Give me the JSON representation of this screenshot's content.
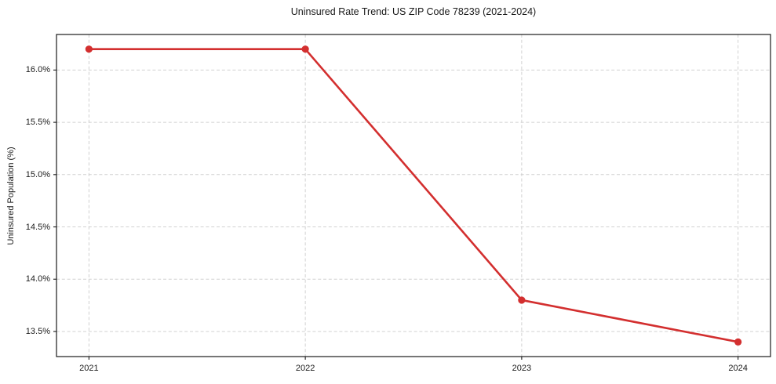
{
  "chart_data": {
    "type": "line",
    "title": "Uninsured Rate Trend: US ZIP Code 78239 (2021-2024)",
    "xlabel": "",
    "ylabel": "Uninsured Population (%)",
    "x": [
      2021,
      2022,
      2023,
      2024
    ],
    "values": [
      16.2,
      16.2,
      13.8,
      13.4
    ],
    "xtick_labels": [
      "2021",
      "2022",
      "2023",
      "2024"
    ],
    "ytick_values": [
      13.5,
      14.0,
      14.5,
      15.0,
      15.5,
      16.0
    ],
    "ytick_labels": [
      "13.5%",
      "14.0%",
      "14.5%",
      "15.0%",
      "15.5%",
      "16.0%"
    ],
    "xlim": [
      2020.85,
      2024.15
    ],
    "ylim": [
      13.26,
      16.34
    ],
    "grid": "dashed-both-axes",
    "legend": "none",
    "line_color": "#d32f2f",
    "marker": "circle"
  }
}
